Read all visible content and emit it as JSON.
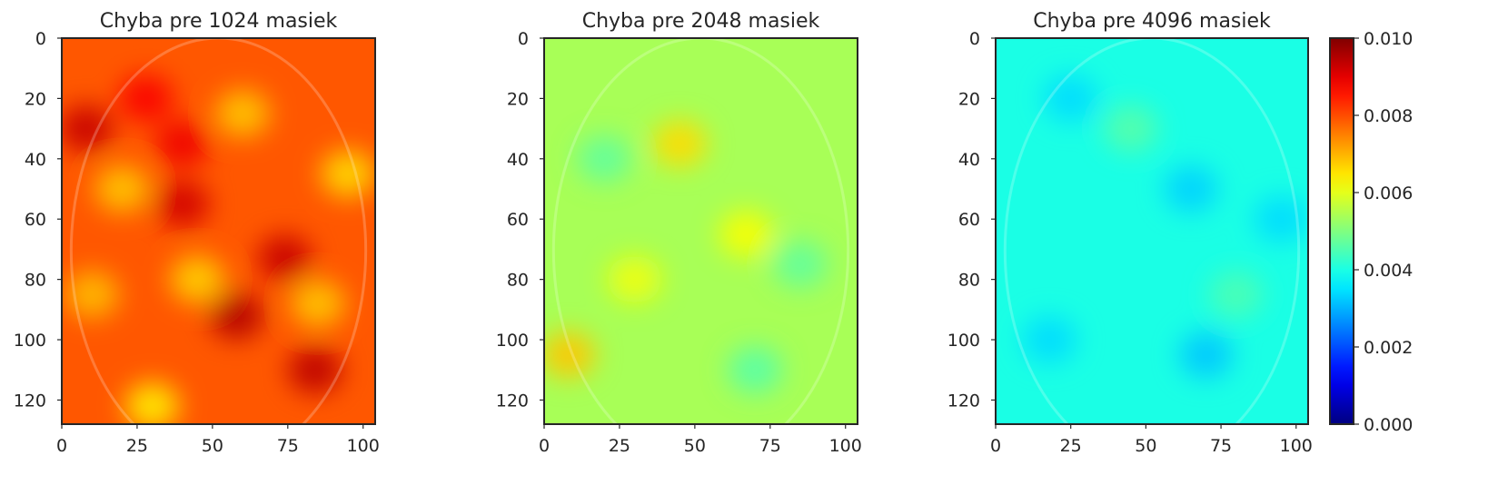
{
  "chart_data": [
    {
      "type": "heatmap",
      "title": "Chyba pre 1024 masiek",
      "x_ticks": [
        0,
        25,
        50,
        75,
        100
      ],
      "y_ticks": [
        0,
        20,
        40,
        60,
        80,
        100,
        120
      ],
      "xlim": [
        0,
        104
      ],
      "ylim": [
        128,
        0
      ],
      "level": 0.0079,
      "hotspots": [
        {
          "x": 8,
          "y": 30,
          "v": 0.0093
        },
        {
          "x": 40,
          "y": 55,
          "v": 0.0092
        },
        {
          "x": 58,
          "y": 92,
          "v": 0.0095
        },
        {
          "x": 74,
          "y": 73,
          "v": 0.0093
        },
        {
          "x": 84,
          "y": 110,
          "v": 0.0094
        },
        {
          "x": 40,
          "y": 35,
          "v": 0.0089
        },
        {
          "x": 28,
          "y": 20,
          "v": 0.0088
        },
        {
          "x": 20,
          "y": 50,
          "v": 0.0068
        },
        {
          "x": 60,
          "y": 25,
          "v": 0.0068
        },
        {
          "x": 95,
          "y": 45,
          "v": 0.0066
        },
        {
          "x": 45,
          "y": 80,
          "v": 0.0067
        },
        {
          "x": 30,
          "y": 122,
          "v": 0.0064
        },
        {
          "x": 10,
          "y": 85,
          "v": 0.0069
        },
        {
          "x": 85,
          "y": 88,
          "v": 0.0068
        }
      ]
    },
    {
      "type": "heatmap",
      "title": "Chyba pre 2048 masiek",
      "x_ticks": [
        0,
        25,
        50,
        75,
        100
      ],
      "y_ticks": [
        0,
        20,
        40,
        60,
        80,
        100,
        120
      ],
      "xlim": [
        0,
        104
      ],
      "ylim": [
        128,
        0
      ],
      "level": 0.0054,
      "hotspots": [
        {
          "x": 45,
          "y": 35,
          "v": 0.0066
        },
        {
          "x": 8,
          "y": 105,
          "v": 0.0068
        },
        {
          "x": 67,
          "y": 65,
          "v": 0.0062
        },
        {
          "x": 20,
          "y": 40,
          "v": 0.0047
        },
        {
          "x": 70,
          "y": 110,
          "v": 0.0046
        },
        {
          "x": 85,
          "y": 75,
          "v": 0.0047
        },
        {
          "x": 30,
          "y": 80,
          "v": 0.0061
        }
      ]
    },
    {
      "type": "heatmap",
      "title": "Chyba pre 4096 masiek",
      "x_ticks": [
        0,
        25,
        50,
        75,
        100
      ],
      "y_ticks": [
        0,
        20,
        40,
        60,
        80,
        100,
        120
      ],
      "xlim": [
        0,
        104
      ],
      "ylim": [
        128,
        0
      ],
      "level": 0.004,
      "hotspots": [
        {
          "x": 25,
          "y": 20,
          "v": 0.0034
        },
        {
          "x": 65,
          "y": 50,
          "v": 0.0033
        },
        {
          "x": 70,
          "y": 105,
          "v": 0.0032
        },
        {
          "x": 18,
          "y": 100,
          "v": 0.0034
        },
        {
          "x": 95,
          "y": 60,
          "v": 0.0034
        },
        {
          "x": 45,
          "y": 30,
          "v": 0.0046
        },
        {
          "x": 80,
          "y": 85,
          "v": 0.0045
        }
      ]
    }
  ],
  "colorbar": {
    "colormap": "jet",
    "range": [
      0.0,
      0.01
    ],
    "tick_values": [
      0.0,
      0.002,
      0.004,
      0.006,
      0.008,
      0.01
    ],
    "tick_labels": [
      "0.000",
      "0.002",
      "0.004",
      "0.006",
      "0.008",
      "0.010"
    ],
    "colors": [
      "#000080",
      "#0000ff",
      "#00ffff",
      "#ffff00",
      "#ff0000",
      "#800000"
    ]
  }
}
